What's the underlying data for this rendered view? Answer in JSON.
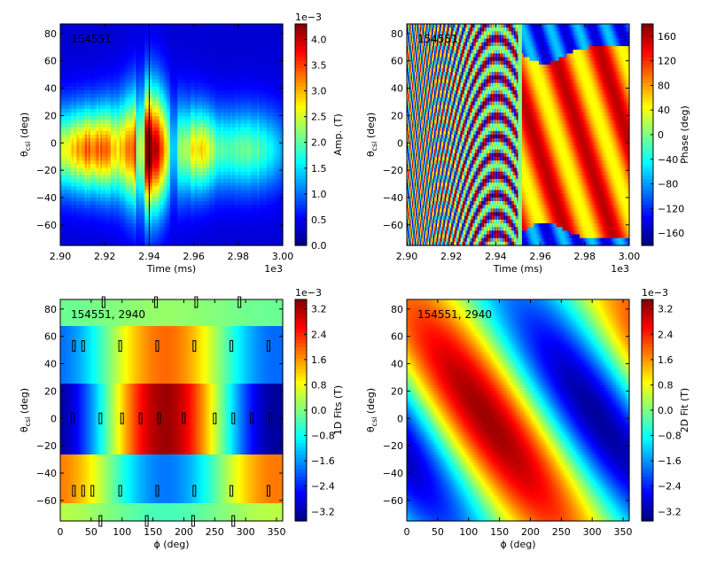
{
  "chart_data": [
    {
      "type": "heatmap",
      "annotation": "154551",
      "xlabel": "Time (ms)",
      "ylabel": "θ_csi (deg)",
      "x_ticks": [
        "2.90",
        "2.92",
        "2.94",
        "2.96",
        "2.98",
        "3.00"
      ],
      "x_offset": "1e3",
      "xlim": [
        2900,
        3000
      ],
      "y_ticks": [
        "−60",
        "−40",
        "−20",
        "0",
        "20",
        "40",
        "60",
        "80"
      ],
      "ylim": [
        -75,
        87
      ],
      "colorbar": {
        "label": "Amp. (T)",
        "scale": "1e−3",
        "ticks": [
          "0.0",
          "0.5",
          "1.0",
          "1.5",
          "2.0",
          "2.5",
          "3.0",
          "3.5",
          "4.0"
        ],
        "range": [
          0,
          4.3
        ]
      },
      "marker_time": 2940
    },
    {
      "type": "heatmap",
      "annotation": "154551",
      "xlabel": "Time (ms)",
      "ylabel": "θ_csi (deg)",
      "x_ticks": [
        "2.90",
        "2.92",
        "2.94",
        "2.96",
        "2.98",
        "3.00"
      ],
      "x_offset": "1e3",
      "xlim": [
        2900,
        3000
      ],
      "y_ticks": [
        "−60",
        "−40",
        "−20",
        "0",
        "20",
        "40",
        "60",
        "80"
      ],
      "ylim": [
        -75,
        87
      ],
      "colorbar": {
        "label": "Phase (deg)",
        "ticks": [
          "−160",
          "−120",
          "−80",
          "−40",
          "0",
          "40",
          "80",
          "120",
          "160"
        ],
        "range": [
          -180,
          180
        ]
      }
    },
    {
      "type": "heatmap",
      "annotation": "154551, 2940",
      "xlabel": "ϕ (deg)",
      "ylabel": "θ_csi (deg)",
      "x_ticks": [
        "0",
        "50",
        "100",
        "150",
        "200",
        "250",
        "300",
        "350"
      ],
      "xlim": [
        0,
        360
      ],
      "y_ticks": [
        "−60",
        "−40",
        "−20",
        "0",
        "20",
        "40",
        "60",
        "80"
      ],
      "ylim": [
        -75,
        87
      ],
      "colorbar": {
        "label": "1D Fits (T)",
        "scale": "1e−3",
        "ticks": [
          "−3.2",
          "−2.4",
          "−1.6",
          "−0.8",
          "0.0",
          "0.8",
          "1.6",
          "2.4",
          "3.2"
        ],
        "range": [
          -3.5,
          3.5
        ]
      },
      "bands": [
        {
          "theta": [
            68,
            87
          ],
          "amplitude": 0.15,
          "phase": 0
        },
        {
          "theta": [
            27,
            68
          ],
          "amplitude": 1.9,
          "phase": 0
        },
        {
          "theta": [
            -27,
            27
          ],
          "amplitude": 3.3,
          "phase": 0
        },
        {
          "theta": [
            -63,
            -27
          ],
          "amplitude": -1.8,
          "phase": 0
        },
        {
          "theta": [
            -75,
            -63
          ],
          "amplitude": -0.4,
          "phase": 0
        }
      ],
      "sensor_markers": [
        {
          "phi": 70,
          "theta": 85
        },
        {
          "phi": 155,
          "theta": 85
        },
        {
          "phi": 220,
          "theta": 85
        },
        {
          "phi": 290,
          "theta": 85
        },
        {
          "phi": 22,
          "theta": 53
        },
        {
          "phi": 37,
          "theta": 53
        },
        {
          "phi": 97,
          "theta": 53
        },
        {
          "phi": 157,
          "theta": 53
        },
        {
          "phi": 217,
          "theta": 53
        },
        {
          "phi": 277,
          "theta": 53
        },
        {
          "phi": 337,
          "theta": 53
        },
        {
          "phi": 20,
          "theta": 0
        },
        {
          "phi": 65,
          "theta": 0
        },
        {
          "phi": 100,
          "theta": 0
        },
        {
          "phi": 130,
          "theta": 0
        },
        {
          "phi": 160,
          "theta": 0
        },
        {
          "phi": 200,
          "theta": 0
        },
        {
          "phi": 250,
          "theta": 0
        },
        {
          "phi": 280,
          "theta": 0
        },
        {
          "phi": 310,
          "theta": 0
        },
        {
          "phi": 340,
          "theta": 0
        },
        {
          "phi": 22,
          "theta": -53
        },
        {
          "phi": 37,
          "theta": -53
        },
        {
          "phi": 52,
          "theta": -53
        },
        {
          "phi": 97,
          "theta": -53
        },
        {
          "phi": 157,
          "theta": -53
        },
        {
          "phi": 217,
          "theta": -53
        },
        {
          "phi": 277,
          "theta": -53
        },
        {
          "phi": 337,
          "theta": -53
        },
        {
          "phi": 65,
          "theta": -75
        },
        {
          "phi": 140,
          "theta": -75
        },
        {
          "phi": 215,
          "theta": -75
        },
        {
          "phi": 280,
          "theta": -75
        }
      ]
    },
    {
      "type": "heatmap",
      "annotation": "154551, 2940",
      "xlabel": "ϕ (deg)",
      "ylabel": "θ_csi (deg)",
      "x_ticks": [
        "0",
        "50",
        "100",
        "150",
        "200",
        "250",
        "300",
        "350"
      ],
      "xlim": [
        0,
        360
      ],
      "y_ticks": [
        "−60",
        "−40",
        "−20",
        "0",
        "20",
        "40",
        "60",
        "80"
      ],
      "ylim": [
        -75,
        87
      ],
      "colorbar": {
        "label": "2D Fit (T)",
        "scale": "1e−3",
        "ticks": [
          "−3.2",
          "−2.4",
          "−1.6",
          "−0.8",
          "0.0",
          "0.8",
          "1.6",
          "2.4",
          "3.2"
        ],
        "range": [
          -3.5,
          3.5
        ]
      }
    }
  ]
}
